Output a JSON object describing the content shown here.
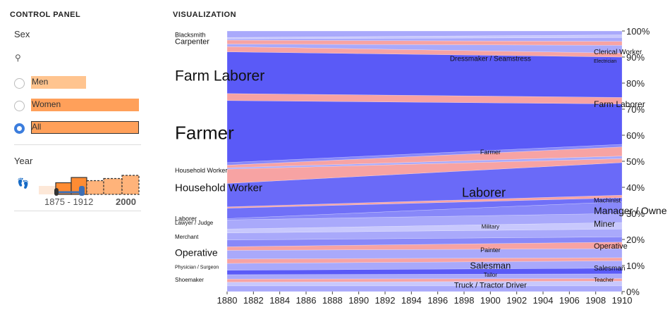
{
  "control_panel": {
    "title": "CONTROL PANEL",
    "sex_label": "Sex",
    "sex_icon": "gender-icon",
    "options": [
      {
        "label": "Men",
        "share": 0.44,
        "color": "#ffc48f",
        "selected": false
      },
      {
        "label": "Women",
        "share": 0.86,
        "color": "#ffa05a",
        "selected": false
      },
      {
        "label": "All",
        "share": 0.86,
        "color": "#ffa05a",
        "selected": true
      }
    ],
    "year_label": "Year",
    "year_icon": "footprints-icon",
    "year_range": "1875 - 1912",
    "year_max": "2000",
    "year_hist": [
      0.55,
      0.8,
      0.65,
      0.75,
      0.9
    ]
  },
  "visualization": {
    "title": "VISUALIZATION"
  },
  "colors": {
    "blue_dark": "#5a5af7",
    "blue_light": "#a9a9fb",
    "pink": "#f7a3a3",
    "slider_blue": "#3d6fb5",
    "bar_orange": "#ff8c33"
  },
  "chart_data": {
    "type": "area",
    "x_ticks": [
      "1880",
      "1882",
      "1884",
      "1886",
      "1888",
      "1890",
      "1892",
      "1894",
      "1896",
      "1898",
      "1900",
      "1902",
      "1904",
      "1906",
      "1908",
      "1910"
    ],
    "y_ticks": [
      "0%",
      "10%",
      "20%",
      "30%",
      "40%",
      "50%",
      "60%",
      "70%",
      "80%",
      "90%",
      "100%"
    ],
    "xlim": [
      1880,
      1910
    ],
    "ylim": [
      0,
      100
    ],
    "bands": [
      {
        "s": 0.0,
        "e": 0.0,
        "c": "#a9a9fb"
      },
      {
        "s": 2.2,
        "e": 2.2,
        "c": "#c8c8fd"
      },
      {
        "s": 3.6,
        "e": 4.0,
        "c": "#f7a3a3"
      },
      {
        "s": 4.8,
        "e": 5.0,
        "c": "#a9a9fb"
      },
      {
        "s": 6.5,
        "e": 6.8,
        "c": "#5a5af7"
      },
      {
        "s": 8.2,
        "e": 9.0,
        "c": "#a9a9fb"
      },
      {
        "s": 10.8,
        "e": 11.8,
        "c": "#f7a3a3"
      },
      {
        "s": 12.5,
        "e": 13.0,
        "c": "#a9a9fb"
      },
      {
        "s": 15.8,
        "e": 16.5,
        "c": "#f7a3a3"
      },
      {
        "s": 17.2,
        "e": 19.0,
        "c": "#8888f9"
      },
      {
        "s": 19.8,
        "e": 21.0,
        "c": "#a9a9fb"
      },
      {
        "s": 22.5,
        "e": 24.0,
        "c": "#c8c8fd"
      },
      {
        "s": 24.0,
        "e": 26.5,
        "c": "#a9a9fb"
      },
      {
        "s": 27.5,
        "e": 30.0,
        "c": "#8888f9"
      },
      {
        "s": 28.0,
        "e": 34.5,
        "c": "#7070f8"
      },
      {
        "s": 32.0,
        "e": 36.0,
        "c": "#f7a3a3"
      },
      {
        "s": 32.5,
        "e": 37.0,
        "c": "#6a6af8"
      },
      {
        "s": 41.5,
        "e": 49.5,
        "c": "#f7a3a3"
      },
      {
        "s": 47.0,
        "e": 51.0,
        "c": "#a9a9fb"
      },
      {
        "s": 47.5,
        "e": 52.0,
        "c": "#f7a3a3"
      },
      {
        "s": 48.5,
        "e": 55.5,
        "c": "#8888f9"
      },
      {
        "s": 49.5,
        "e": 56.5,
        "c": "#5a5af7"
      },
      {
        "s": 73.3,
        "e": 72.0,
        "c": "#f7a3a3"
      },
      {
        "s": 76.0,
        "e": 74.5,
        "c": "#5a5af7"
      },
      {
        "s": 92.0,
        "e": 90.0,
        "c": "#f7a3a3"
      },
      {
        "s": 94.0,
        "e": 91.5,
        "c": "#a9a9fb"
      },
      {
        "s": 95.0,
        "e": 94.5,
        "c": "#f7a3a3"
      },
      {
        "s": 96.5,
        "e": 96.0,
        "c": "#a9a9fb"
      },
      {
        "s": 97.0,
        "e": 97.5,
        "c": "#c8c8fd"
      },
      {
        "s": 97.5,
        "e": 98.5,
        "c": "#a9a9fb"
      }
    ],
    "labels": [
      {
        "text": "Farm Laborer",
        "x": 1880,
        "y": 83,
        "size": 21,
        "anchor": "start"
      },
      {
        "text": "Farmer",
        "x": 1880,
        "y": 61,
        "size": 26,
        "anchor": "start"
      },
      {
        "text": "Household Worker",
        "x": 1880,
        "y": 40,
        "size": 15,
        "anchor": "start"
      },
      {
        "text": "Operative",
        "x": 1880,
        "y": 15,
        "size": 14,
        "anchor": "start"
      },
      {
        "text": "Carpenter",
        "x": 1880,
        "y": 96,
        "size": 11,
        "anchor": "start"
      },
      {
        "text": "Blacksmith",
        "x": 1880,
        "y": 98.5,
        "size": 9,
        "anchor": "start"
      },
      {
        "text": "Household Worker",
        "x": 1880,
        "y": 46.5,
        "size": 9,
        "anchor": "start"
      },
      {
        "text": "Laborer",
        "x": 1880,
        "y": 28,
        "size": 9,
        "anchor": "start"
      },
      {
        "text": "Lawyer / Judge",
        "x": 1880,
        "y": 26.5,
        "size": 8,
        "anchor": "start"
      },
      {
        "text": "Merchant",
        "x": 1880,
        "y": 21,
        "size": 8,
        "anchor": "start"
      },
      {
        "text": "Physician / Surgeon",
        "x": 1880,
        "y": 9.5,
        "size": 7,
        "anchor": "start"
      },
      {
        "text": "Shoemaker",
        "x": 1880,
        "y": 4.5,
        "size": 8,
        "anchor": "start"
      },
      {
        "text": "Laborer",
        "x": 1899.5,
        "y": 38,
        "size": 18,
        "anchor": "middle"
      },
      {
        "text": "Salesman",
        "x": 1900,
        "y": 10,
        "size": 13,
        "anchor": "middle"
      },
      {
        "text": "Truck / Tractor Driver",
        "x": 1900,
        "y": 2.5,
        "size": 11,
        "anchor": "middle"
      },
      {
        "text": "Dressmaker / Seamstress",
        "x": 1900,
        "y": 89.5,
        "size": 10,
        "anchor": "middle"
      },
      {
        "text": "Farmer",
        "x": 1900,
        "y": 53.5,
        "size": 9,
        "anchor": "middle"
      },
      {
        "text": "Military",
        "x": 1900,
        "y": 25,
        "size": 8,
        "anchor": "middle"
      },
      {
        "text": "Painter",
        "x": 1900,
        "y": 16,
        "size": 9,
        "anchor": "middle"
      },
      {
        "text": "Tailor",
        "x": 1900,
        "y": 6.5,
        "size": 8,
        "anchor": "middle"
      },
      {
        "text": "Farm Laborer",
        "x": 1910,
        "y": 72,
        "size": 12,
        "anchor": "start"
      },
      {
        "text": "Clerical Worker",
        "x": 1910,
        "y": 92,
        "size": 10,
        "anchor": "start"
      },
      {
        "text": "Manager / Owner",
        "x": 1910,
        "y": 31,
        "size": 14,
        "anchor": "start"
      },
      {
        "text": "Miner",
        "x": 1910,
        "y": 26,
        "size": 12,
        "anchor": "start"
      },
      {
        "text": "Operative",
        "x": 1910,
        "y": 17.5,
        "size": 11,
        "anchor": "start"
      },
      {
        "text": "Salesman",
        "x": 1910,
        "y": 9,
        "size": 10,
        "anchor": "start"
      },
      {
        "text": "Machinist",
        "x": 1910,
        "y": 35,
        "size": 9,
        "anchor": "start"
      },
      {
        "text": "Teacher",
        "x": 1910,
        "y": 4.5,
        "size": 8,
        "anchor": "start"
      },
      {
        "text": "Electrician",
        "x": 1910,
        "y": 88.5,
        "size": 7,
        "anchor": "start"
      }
    ]
  }
}
